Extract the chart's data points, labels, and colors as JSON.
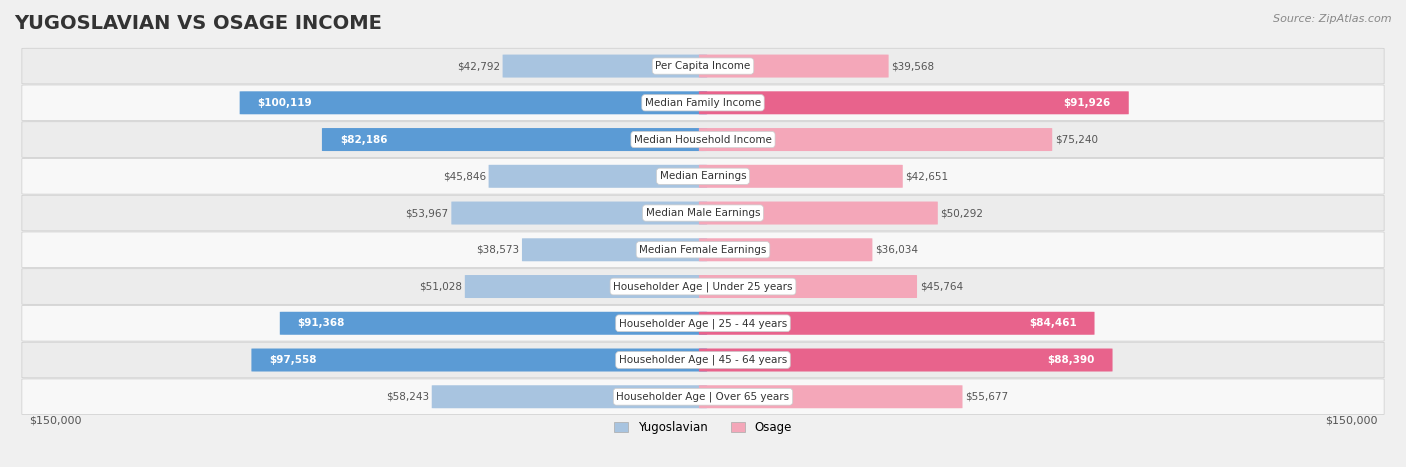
{
  "title": "YUGOSLAVIAN VS OSAGE INCOME",
  "source": "Source: ZipAtlas.com",
  "categories": [
    "Per Capita Income",
    "Median Family Income",
    "Median Household Income",
    "Median Earnings",
    "Median Male Earnings",
    "Median Female Earnings",
    "Householder Age | Under 25 years",
    "Householder Age | 25 - 44 years",
    "Householder Age | 45 - 64 years",
    "Householder Age | Over 65 years"
  ],
  "yugoslavian_values": [
    42792,
    100119,
    82186,
    45846,
    53967,
    38573,
    51028,
    91368,
    97558,
    58243
  ],
  "osage_values": [
    39568,
    91926,
    75240,
    42651,
    50292,
    36034,
    45764,
    84461,
    88390,
    55677
  ],
  "yugoslavian_labels": [
    "$42,792",
    "$100,119",
    "$82,186",
    "$45,846",
    "$53,967",
    "$38,573",
    "$51,028",
    "$91,368",
    "$97,558",
    "$58,243"
  ],
  "osage_labels": [
    "$39,568",
    "$91,926",
    "$75,240",
    "$42,651",
    "$50,292",
    "$36,034",
    "$45,764",
    "$84,461",
    "$88,390",
    "$55,677"
  ],
  "max_value": 150000,
  "color_yugoslavian_light": "#a8c4e0",
  "color_yugoslavian_dark": "#5b9bd5",
  "color_osage_light": "#f4a7b9",
  "color_osage_dark": "#e8638c",
  "threshold": 80000,
  "background_color": "#f5f5f5",
  "row_background": "#e8e8e8",
  "row_background2": "#ffffff",
  "legend_yug": "Yugoslavian",
  "legend_osage": "Osage",
  "x_label_left": "$150,000",
  "x_label_right": "$150,000",
  "title_fontsize": 14,
  "label_fontsize": 9
}
